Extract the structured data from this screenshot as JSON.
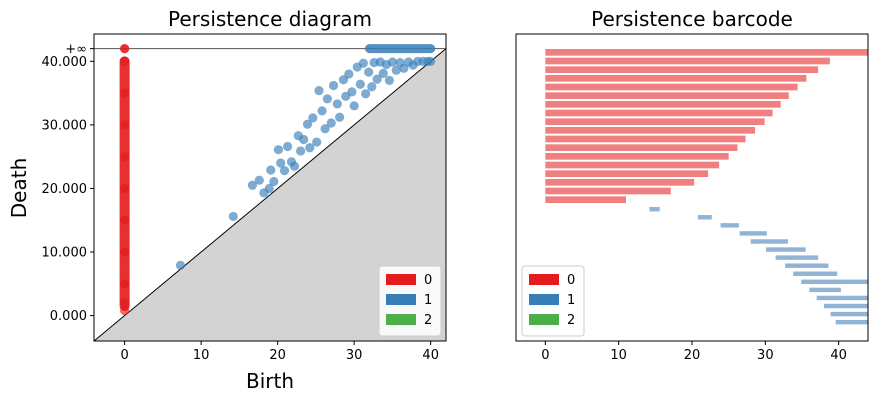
{
  "colors": {
    "dim0": "#e41a1c",
    "dim1": "#377eb8",
    "dim2": "#4daf4a",
    "bar0": "#f08080",
    "bar1": "#8fb4d6",
    "shade": "#d3d3d3"
  },
  "chart_data": [
    {
      "type": "scatter",
      "title": "Persistence diagram",
      "xlabel": "Birth",
      "ylabel": "Death",
      "xlim": [
        -4,
        42
      ],
      "ylim": [
        -4,
        44.3
      ],
      "infinity_value": 42,
      "infinity_label": "+∞",
      "xticks": [
        0,
        10,
        20,
        30,
        40
      ],
      "yticks": [
        0,
        10,
        20,
        30,
        40
      ],
      "ytick_labels": [
        "0.000",
        "10.000",
        "20.000",
        "30.000",
        "40.000"
      ],
      "diagonal": true,
      "legend": {
        "placement": "lower-right",
        "entries": [
          "0",
          "1",
          "2"
        ]
      },
      "series": [
        {
          "name": "0",
          "dimension": 0,
          "points_finite": [
            [
              0,
              0.8
            ],
            [
              0,
              2
            ],
            [
              0,
              5
            ],
            [
              0,
              10
            ],
            [
              0,
              15
            ],
            [
              0,
              20
            ],
            [
              0,
              25
            ],
            [
              0,
              30
            ],
            [
              0,
              35
            ],
            [
              0,
              40
            ]
          ],
          "finite_segment": [
            0,
            1.5,
            40
          ],
          "points_infinite": [
            [
              0,
              42
            ]
          ]
        },
        {
          "name": "1",
          "dimension": 1,
          "points_finite": [
            [
              7.3,
              7.9
            ],
            [
              14.2,
              15.6
            ],
            [
              16.7,
              20.5
            ],
            [
              17.6,
              21.3
            ],
            [
              18.2,
              19.3
            ],
            [
              18.9,
              20.0
            ],
            [
              19.1,
              22.9
            ],
            [
              19.5,
              21.1
            ],
            [
              20.1,
              26.1
            ],
            [
              20.4,
              24.0
            ],
            [
              20.9,
              22.8
            ],
            [
              21.3,
              26.6
            ],
            [
              21.8,
              24.2
            ],
            [
              22.2,
              23.5
            ],
            [
              22.7,
              28.3
            ],
            [
              23.0,
              25.9
            ],
            [
              23.4,
              27.7
            ],
            [
              23.9,
              30.1
            ],
            [
              24.2,
              26.4
            ],
            [
              24.6,
              31.1
            ],
            [
              25.1,
              27.3
            ],
            [
              25.4,
              35.4
            ],
            [
              25.8,
              32.2
            ],
            [
              26.2,
              29.4
            ],
            [
              26.5,
              34.1
            ],
            [
              27.0,
              30.3
            ],
            [
              27.3,
              36.2
            ],
            [
              27.8,
              33.3
            ],
            [
              28.1,
              31.2
            ],
            [
              28.6,
              37.1
            ],
            [
              28.9,
              34.5
            ],
            [
              29.3,
              38.0
            ],
            [
              29.7,
              35.2
            ],
            [
              30.0,
              33.0
            ],
            [
              30.4,
              39.1
            ],
            [
              30.8,
              36.4
            ],
            [
              31.2,
              39.7
            ],
            [
              31.5,
              34.9
            ],
            [
              31.9,
              38.3
            ],
            [
              32.3,
              36.0
            ],
            [
              32.6,
              39.8
            ],
            [
              33.0,
              37.2
            ],
            [
              33.4,
              39.9
            ],
            [
              33.8,
              38.1
            ],
            [
              34.2,
              39.5
            ],
            [
              34.6,
              37.0
            ],
            [
              35.0,
              39.9
            ],
            [
              35.5,
              38.6
            ],
            [
              36.0,
              39.8
            ],
            [
              36.5,
              38.9
            ],
            [
              37.1,
              39.9
            ],
            [
              37.7,
              39.4
            ],
            [
              38.3,
              40.0
            ],
            [
              39.0,
              40.0
            ],
            [
              39.6,
              40.0
            ],
            [
              40.0,
              40.0
            ]
          ],
          "infinite_range": [
            32,
            40
          ]
        },
        {
          "name": "2",
          "dimension": 2,
          "points_finite": []
        }
      ]
    },
    {
      "type": "barcode",
      "title": "Persistence barcode",
      "xlim": [
        -4,
        44
      ],
      "xticks": [
        0,
        10,
        20,
        30,
        40
      ],
      "legend": {
        "placement": "lower-left",
        "entries": [
          "0",
          "1",
          "2"
        ]
      },
      "series": [
        {
          "name": "0",
          "dimension": 0,
          "bars": [
            [
              0,
              44
            ],
            [
              0,
              38.8
            ],
            [
              0,
              37.2
            ],
            [
              0,
              35.6
            ],
            [
              0,
              34.4
            ],
            [
              0,
              33.2
            ],
            [
              0,
              32.1
            ],
            [
              0,
              31.0
            ],
            [
              0,
              29.9
            ],
            [
              0,
              28.6
            ],
            [
              0,
              27.3
            ],
            [
              0,
              26.2
            ],
            [
              0,
              25.0
            ],
            [
              0,
              23.7
            ],
            [
              0,
              22.2
            ],
            [
              0,
              20.3
            ],
            [
              0,
              17.1
            ],
            [
              0,
              11.0
            ]
          ]
        },
        {
          "name": "1",
          "dimension": 1,
          "bars": [
            [
              14.2,
              15.6
            ],
            [
              20.8,
              22.7
            ],
            [
              23.9,
              26.4
            ],
            [
              26.5,
              30.2
            ],
            [
              28.0,
              33.1
            ],
            [
              30.1,
              35.5
            ],
            [
              31.4,
              37.2
            ],
            [
              32.7,
              38.6
            ],
            [
              33.8,
              39.8
            ],
            [
              34.9,
              44
            ],
            [
              36.0,
              40.3
            ],
            [
              37.0,
              44
            ],
            [
              38.0,
              44
            ],
            [
              38.9,
              44
            ],
            [
              39.6,
              44
            ]
          ]
        },
        {
          "name": "2",
          "dimension": 2,
          "bars": []
        }
      ]
    }
  ]
}
